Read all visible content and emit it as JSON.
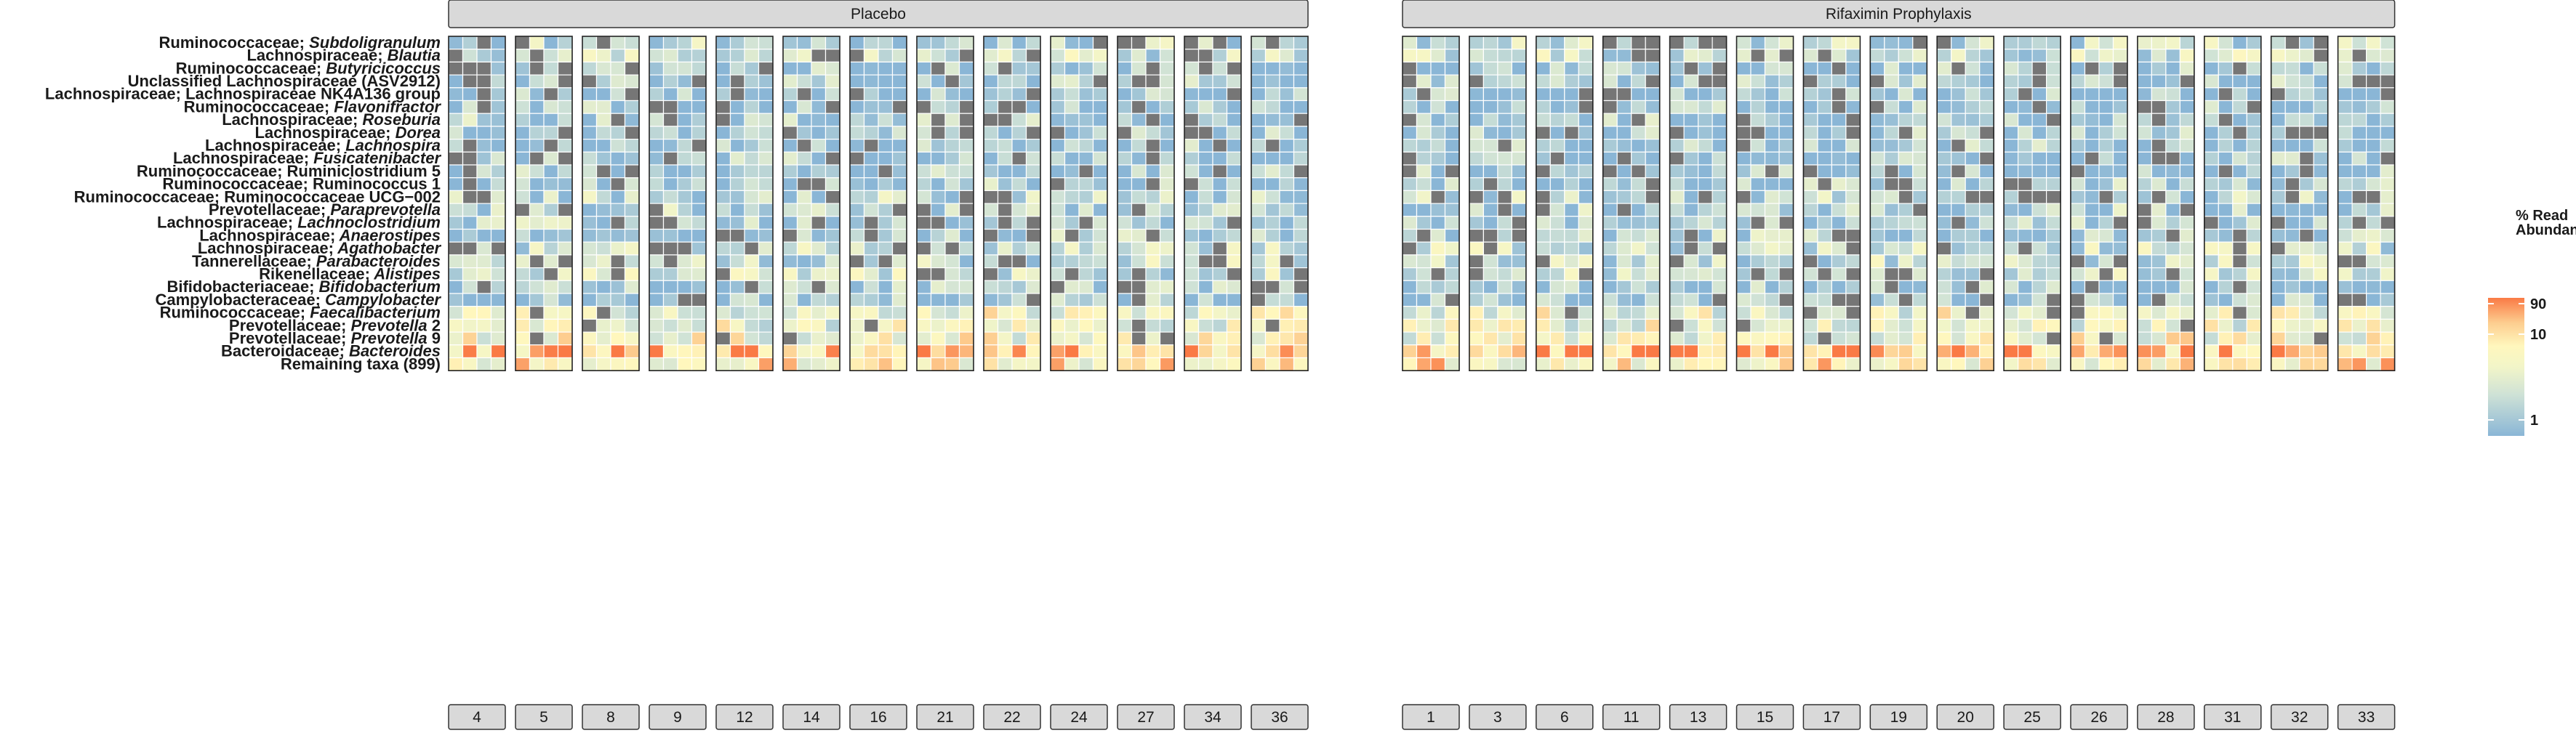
{
  "chart_data": {
    "type": "heatmap",
    "facet_groups": [
      {
        "label": "Placebo",
        "patients": [
          "4",
          "5",
          "8",
          "9",
          "12",
          "14",
          "16",
          "21",
          "22",
          "24",
          "27",
          "34",
          "36"
        ]
      },
      {
        "label": "Rifaximin Prophylaxis",
        "patients": [
          "1",
          "3",
          "6",
          "11",
          "13",
          "15",
          "17",
          "19",
          "20",
          "25",
          "26",
          "28",
          "31",
          "32",
          "33"
        ]
      }
    ],
    "samples_per_patient": 4,
    "taxa": [
      {
        "family": "Ruminococcaceae",
        "genus": "Subdoligranulum",
        "italic": true
      },
      {
        "family": "Lachnospiraceae",
        "genus": "Blautia",
        "italic": true
      },
      {
        "family": "Ruminococcaceae",
        "genus": "Butyricicoccus",
        "italic": true
      },
      {
        "family": "Unclassified Lachnospiraceae (ASV2912)",
        "genus": "",
        "italic": false
      },
      {
        "family": "Lachnospiraceae",
        "genus": "Lachnospiraceae NK4A136 group",
        "italic": false
      },
      {
        "family": "Ruminococcaceae",
        "genus": "Flavonifractor",
        "italic": true
      },
      {
        "family": "Lachnospiraceae",
        "genus": "Roseburia",
        "italic": true
      },
      {
        "family": "Lachnospiraceae",
        "genus": "Dorea",
        "italic": true
      },
      {
        "family": "Lachnospiraceae",
        "genus": "Lachnospira",
        "italic": true
      },
      {
        "family": "Lachnospiraceae",
        "genus": "Fusicatenibacter",
        "italic": true
      },
      {
        "family": "Ruminococcaceae",
        "genus": "Ruminiclostridium 5",
        "italic": false
      },
      {
        "family": "Ruminococcaceae",
        "genus": "Ruminococcus 1",
        "italic": false
      },
      {
        "family": "Ruminococcaceae",
        "genus": "Ruminococcaceae UCG−002",
        "italic": false
      },
      {
        "family": "Prevotellaceae",
        "genus": "Paraprevotella",
        "italic": true
      },
      {
        "family": "Lachnospiraceae",
        "genus": "Lachnoclostridium",
        "italic": true
      },
      {
        "family": "Lachnospiraceae",
        "genus": "Anaerostipes",
        "italic": true
      },
      {
        "family": "Lachnospiraceae",
        "genus": "Agathobacter",
        "italic": true
      },
      {
        "family": "Tannerellaceae",
        "genus": "Parabacteroides",
        "italic": true
      },
      {
        "family": "Rikenellaceae",
        "genus": "Alistipes",
        "italic": true
      },
      {
        "family": "Bifidobacteriaceae",
        "genus": "Bifidobacterium",
        "italic": true
      },
      {
        "family": "Campylobacteraceae",
        "genus": "Campylobacter",
        "italic": true
      },
      {
        "family": "Ruminococcaceae",
        "genus": "Faecalibacterium",
        "italic": true
      },
      {
        "family": "Prevotellaceae",
        "genus": "Prevotella 2",
        "italic": true,
        "italic_prefix": "Prevotella",
        "suffix": " 2"
      },
      {
        "family": "Prevotellaceae",
        "genus": "Prevotella 9",
        "italic": true,
        "italic_prefix": "Prevotella",
        "suffix": " 9"
      },
      {
        "family": "Bacteroidaceae",
        "genus": "Bacteroides",
        "italic": true
      },
      {
        "family": "Remaining taxa (899)",
        "genus": "",
        "italic": false
      }
    ],
    "legend": {
      "title_line1": "% Read",
      "title_line2": "Abundance",
      "scale": "log10",
      "ticks": [
        90,
        10,
        1
      ],
      "range": [
        0.5,
        90
      ],
      "colors": [
        "#8ab6d6",
        "#e8efcc",
        "#fffcc9",
        "#fdcd8f",
        "#fa7a45"
      ],
      "missing_color": "#767676"
    },
    "abundance_profile_pct": {
      "Ruminococcaceae; Subdoligranulum": 1.8,
      "Lachnospiraceae; Blautia": 2.5,
      "Ruminococcaceae; Butyricicoccus": 0.9,
      "Unclassified Lachnospiraceae (ASV2912)": 1.0,
      "Lachnospiraceae; Lachnospiraceae NK4A136 group": 0.8,
      "Ruminococcaceae; Flavonifractor": 0.9,
      "Lachnospiraceae; Roseburia": 1.2,
      "Lachnospiraceae; Dorea": 0.9,
      "Lachnospiraceae; Lachnospira": 0.9,
      "Lachnospiraceae; Fusicatenibacter": 0.9,
      "Ruminococcaceae; Ruminiclostridium 5": 1.0,
      "Ruminococcaceae; Ruminococcus 1": 1.0,
      "Ruminococcaceae; Ruminococcaceae UCG−002": 1.6,
      "Prevotellaceae; Paraprevotella": 1.3,
      "Lachnospiraceae; Lachnoclostridium": 1.4,
      "Lachnospiraceae; Anaerostipes": 1.2,
      "Lachnospiraceae; Agathobacter": 2.4,
      "Tannerellaceae; Parabacteroides": 2.2,
      "Rikenellaceae; Alistipes": 2.8,
      "Bifidobacteriaceae; Bifidobacterium": 1.0,
      "Campylobacteraceae; Campylobacter": 0.9,
      "Ruminococcaceae; Faecalibacterium": 6.5,
      "Prevotellaceae; Prevotella 2": 6.0,
      "Prevotellaceae; Prevotella 9": 8.0,
      "Bacteroidaceae; Bacteroides": 35.0,
      "Remaining taxa (899)": 14.0
    }
  }
}
